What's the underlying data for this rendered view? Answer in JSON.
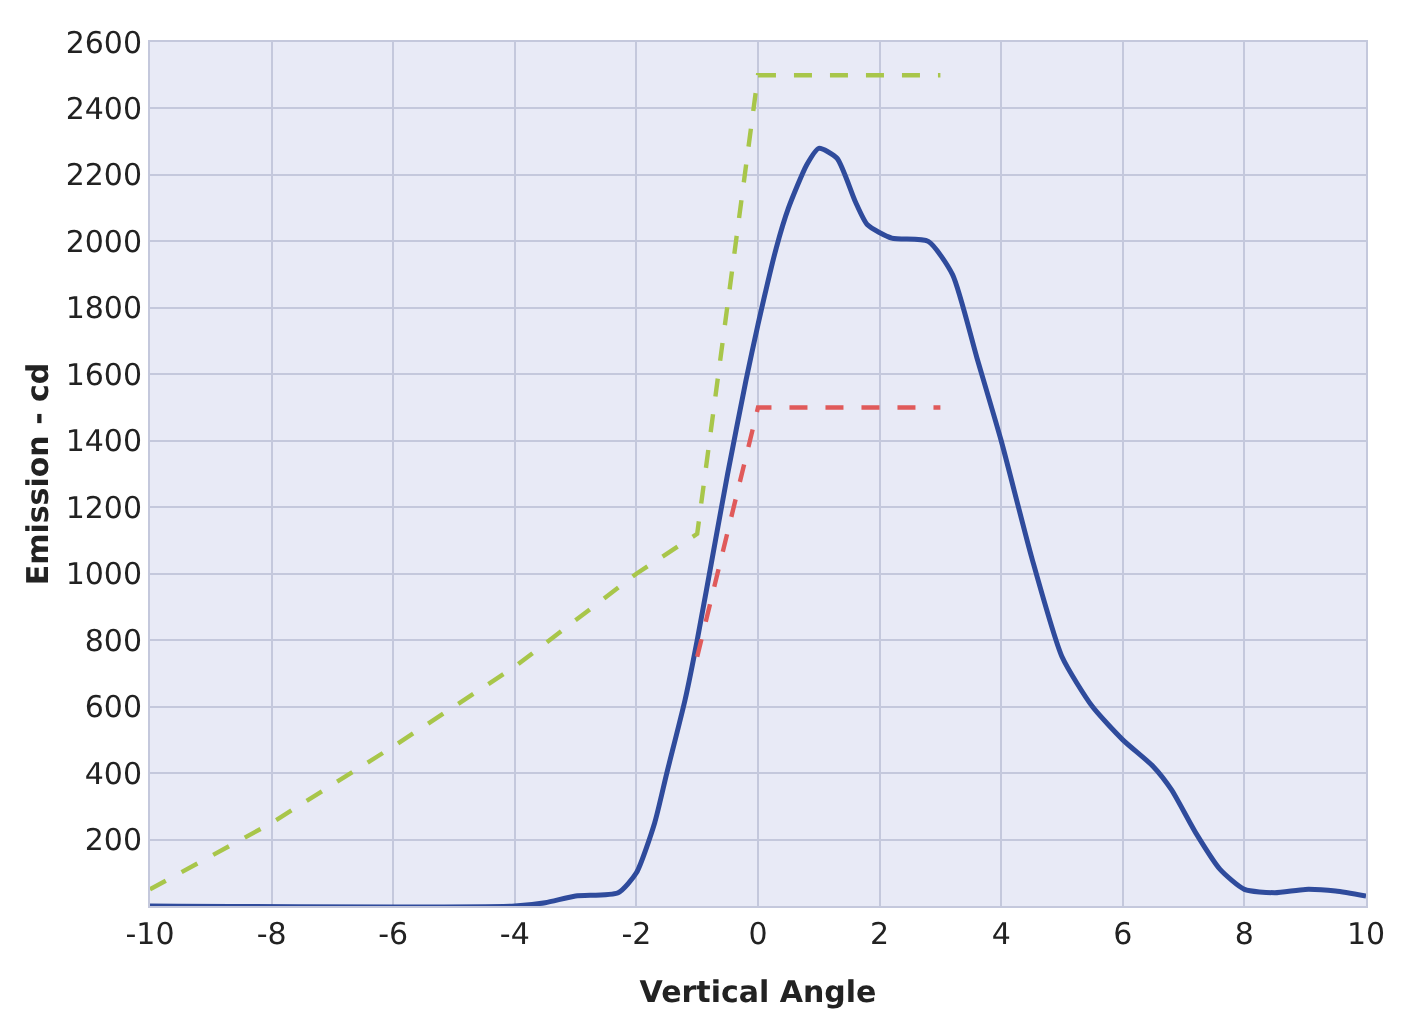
{
  "chart_data": {
    "type": "line",
    "xlabel": "Vertical Angle",
    "ylabel": "Emission - cd",
    "xlim": [
      -10,
      10
    ],
    "xticks": [
      -10,
      -8,
      -6,
      -4,
      -2,
      0,
      2,
      4,
      6,
      8,
      10
    ],
    "ylim": [
      0,
      2600
    ],
    "yticks": [
      200,
      400,
      600,
      800,
      1000,
      1200,
      1400,
      1600,
      1800,
      2000,
      2200,
      2400,
      2600
    ],
    "grid": true,
    "marker": "none",
    "series": [
      {
        "color": "#2f4b9c",
        "line_style": "solid",
        "x": [
          -10,
          -4,
          -3.5,
          -3,
          -2.3,
          -2,
          -1.7,
          -1.5,
          -1.2,
          -1,
          -0.7,
          -0.5,
          -0.2,
          0,
          0.3,
          0.5,
          0.8,
          1,
          1.3,
          1.6,
          1.8,
          2.2,
          2.8,
          3.2,
          3.6,
          4,
          4.5,
          5,
          5.5,
          6,
          6.5,
          6.8,
          7.2,
          7.6,
          8,
          8.5,
          9,
          9.5,
          10
        ],
        "values": [
          0,
          0,
          10,
          30,
          40,
          100,
          250,
          400,
          620,
          800,
          1100,
          1300,
          1580,
          1750,
          1980,
          2100,
          2230,
          2280,
          2250,
          2120,
          2050,
          2010,
          2000,
          1900,
          1650,
          1400,
          1050,
          750,
          600,
          500,
          420,
          350,
          220,
          110,
          50,
          40,
          50,
          45,
          30
        ]
      },
      {
        "color": "#a8c64a",
        "line_style": "dashed",
        "x": [
          -10,
          -8,
          -6,
          -4,
          -2,
          -1,
          0,
          3
        ],
        "values": [
          50,
          250,
          480,
          720,
          1000,
          1120,
          2500,
          2500
        ]
      },
      {
        "color": "#e05a5a",
        "line_style": "dashed",
        "x": [
          -1,
          0,
          3
        ],
        "values": [
          750,
          1500,
          1500
        ]
      }
    ]
  }
}
